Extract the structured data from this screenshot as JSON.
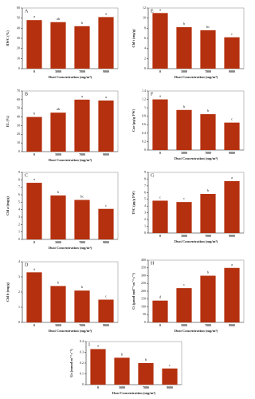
{
  "chart_data": [
    {
      "type": "bar",
      "label": "A",
      "ylabel": "RWC (%)",
      "xlabel": "Dust Concentration (mg/m³)",
      "categories": [
        "0",
        "5000",
        "7000",
        "9000"
      ],
      "values": [
        48,
        46,
        42,
        51
      ],
      "letters": [
        "a",
        "ab",
        "b",
        "a"
      ],
      "color": "#b5300e",
      "ylim": [
        0,
        60
      ],
      "yticks": [
        0,
        10,
        20,
        30,
        40,
        50,
        60
      ]
    },
    {
      "type": "bar",
      "label": "B",
      "ylabel": "EL (%)",
      "xlabel": "Dust Concentration (mg/m³)",
      "categories": [
        "0",
        "5000",
        "7000",
        "9000"
      ],
      "values": [
        40,
        45,
        60,
        59
      ],
      "letters": [
        "b",
        "ab",
        "a",
        "a"
      ],
      "color": "#b5300e",
      "ylim": [
        0,
        70
      ],
      "yticks": [
        0,
        10,
        20,
        30,
        40,
        50,
        60,
        70
      ]
    },
    {
      "type": "bar",
      "label": "C",
      "ylabel": "Chl a (mg/g)",
      "xlabel": "Dust Concentration (mg/m³)",
      "categories": [
        "0",
        "5000",
        "7000",
        "9000"
      ],
      "values": [
        7.6,
        5.9,
        5.3,
        4.1
      ],
      "letters": [
        "a",
        "b",
        "bc",
        "c"
      ],
      "color": "#b5300e",
      "ylim": [
        0,
        9
      ],
      "yticks": [
        0,
        1,
        2,
        3,
        4,
        5,
        6,
        7,
        8,
        9
      ]
    },
    {
      "type": "bar",
      "label": "D",
      "ylabel": "Chl b (mg/g)",
      "xlabel": "Dust Concentration (mg/m³)",
      "categories": [
        "0",
        "5000",
        "7000",
        "9000"
      ],
      "values": [
        3.3,
        2.4,
        2.1,
        1.5
      ],
      "letters": [
        "a",
        "b",
        "b",
        "c"
      ],
      "color": "#b5300e",
      "ylim": [
        0,
        4
      ],
      "yticks": [
        0,
        1,
        2,
        3,
        4
      ]
    },
    {
      "type": "bar",
      "label": "E",
      "ylabel": "Chl t (mg/g)",
      "xlabel": "Dust Concentration (mg/m³)",
      "categories": [
        "0",
        "5000",
        "7000",
        "9000"
      ],
      "values": [
        11,
        8.2,
        7.6,
        6.2
      ],
      "letters": [
        "a",
        "b",
        "bc",
        "c"
      ],
      "color": "#b5300e",
      "ylim": [
        0,
        12
      ],
      "yticks": [
        0,
        2,
        4,
        6,
        8,
        10,
        12
      ]
    },
    {
      "type": "bar",
      "label": "F",
      "ylabel": "Car (µg/g FW)",
      "xlabel": "Dust Concentration (mg/m³)",
      "categories": [
        "0",
        "5000",
        "7000",
        "9000"
      ],
      "values": [
        1.2,
        0.95,
        0.85,
        0.65
      ],
      "letters": [
        "a",
        "b",
        "b",
        "c"
      ],
      "color": "#b5300e",
      "ylim": [
        0,
        1.4
      ],
      "yticks": [
        0,
        0.2,
        0.4,
        0.6,
        0.8,
        1,
        1.2,
        1.4
      ]
    },
    {
      "type": "bar",
      "label": "G",
      "ylabel": "TSC (µg/g FW)",
      "xlabel": "Dust Concentration (mg/m³)",
      "categories": [
        "0",
        "5000",
        "7000",
        "9000"
      ],
      "values": [
        4.8,
        4.6,
        5.8,
        7.7
      ],
      "letters": [
        "c",
        "c",
        "b",
        "a"
      ],
      "color": "#b5300e",
      "ylim": [
        0,
        9
      ],
      "yticks": [
        0,
        1,
        2,
        3,
        4,
        5,
        6,
        7,
        8,
        9
      ]
    },
    {
      "type": "bar",
      "label": "H",
      "ylabel": "Ci (µmol mol⁻¹ m⁻² s⁻¹)",
      "xlabel": "Dust Concentration (mg/m³)",
      "categories": [
        "0",
        "5000",
        "7000",
        "9000"
      ],
      "values": [
        140,
        220,
        300,
        350
      ],
      "letters": [
        "d",
        "c",
        "b",
        "a"
      ],
      "color": "#b5300e",
      "ylim": [
        0,
        400
      ],
      "yticks": [
        0,
        50,
        100,
        150,
        200,
        250,
        300,
        350,
        400
      ]
    },
    {
      "type": "bar",
      "label": "I",
      "ylabel": "Gs (mmol m⁻² s⁻¹)",
      "xlabel": "Dust Concentration (mg/m³)",
      "categories": [
        "0",
        "5000",
        "7000",
        "9000"
      ],
      "values": [
        0.33,
        0.25,
        0.2,
        0.15
      ],
      "letters": [
        "a",
        "b",
        "b",
        "c"
      ],
      "color": "#b5300e",
      "ylim": [
        0,
        0.4
      ],
      "yticks": [
        0,
        0.1,
        0.2,
        0.3,
        0.4
      ]
    }
  ]
}
